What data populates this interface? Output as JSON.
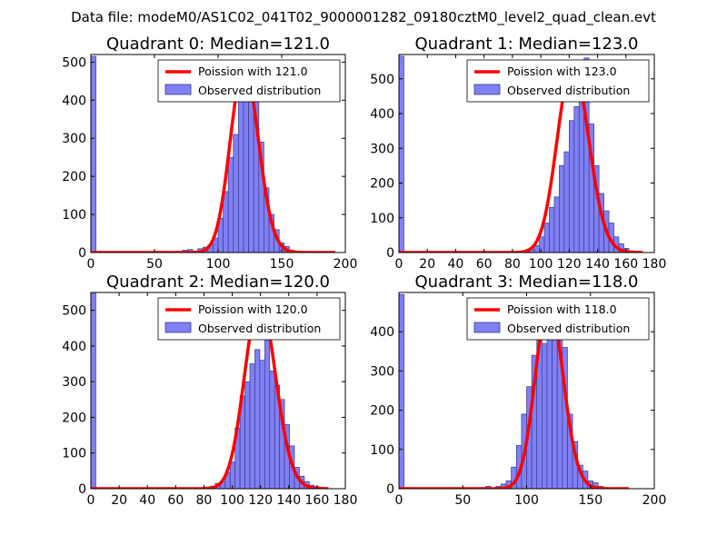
{
  "suptitle": "Data file: modeM0/AS1C02_041T02_9000001282_09180cztM0_level2_quad_clean.evt",
  "colors": {
    "bar_fill": "#8080f5",
    "bar_edge": "#3a3a8c",
    "curve": "#ff0000",
    "axis": "#000000",
    "background": "#ffffff"
  },
  "chart_data": [
    {
      "type": "bar",
      "title": "Quadrant 0: Median=121.0",
      "legend": {
        "curve_label": "Poission with 121.0",
        "bar_label": "Observed distribution",
        "placement": "top-right"
      },
      "xlim": [
        0,
        200
      ],
      "ylim": [
        0,
        520
      ],
      "xticks": [
        0,
        50,
        100,
        150,
        200
      ],
      "yticks": [
        0,
        100,
        200,
        300,
        400,
        500
      ],
      "bin_width": 4,
      "bins": [
        [
          0,
          515
        ],
        [
          56,
          3
        ],
        [
          64,
          2
        ],
        [
          68,
          3
        ],
        [
          72,
          6
        ],
        [
          76,
          8
        ],
        [
          80,
          4
        ],
        [
          84,
          10
        ],
        [
          88,
          14
        ],
        [
          92,
          20
        ],
        [
          96,
          38
        ],
        [
          100,
          90
        ],
        [
          104,
          160
        ],
        [
          108,
          250
        ],
        [
          112,
          310
        ],
        [
          116,
          410
        ],
        [
          120,
          470
        ],
        [
          124,
          480
        ],
        [
          128,
          410
        ],
        [
          132,
          290
        ],
        [
          136,
          170
        ],
        [
          140,
          100
        ],
        [
          144,
          60
        ],
        [
          148,
          25
        ],
        [
          152,
          16
        ],
        [
          156,
          6
        ],
        [
          160,
          2
        ]
      ],
      "curve": {
        "mu": 121.0,
        "peak": 490,
        "x_range": [
          0,
          192
        ]
      }
    },
    {
      "type": "bar",
      "title": "Quadrant 1: Median=123.0",
      "legend": {
        "curve_label": "Poission with 123.0",
        "bar_label": "Observed distribution",
        "placement": "top-right"
      },
      "xlim": [
        0,
        180
      ],
      "ylim": [
        0,
        570
      ],
      "xticks": [
        0,
        20,
        40,
        60,
        80,
        100,
        120,
        140,
        160,
        180
      ],
      "yticks": [
        0,
        100,
        200,
        300,
        400,
        500
      ],
      "bin_width": 3.5,
      "bins": [
        [
          0,
          565
        ],
        [
          80,
          2
        ],
        [
          84,
          4
        ],
        [
          88,
          6
        ],
        [
          92,
          10
        ],
        [
          95.5,
          20
        ],
        [
          99,
          45
        ],
        [
          102.5,
          85
        ],
        [
          106,
          130
        ],
        [
          109.5,
          160
        ],
        [
          113,
          250
        ],
        [
          116.5,
          290
        ],
        [
          120,
          380
        ],
        [
          123.5,
          420
        ],
        [
          127,
          550
        ],
        [
          130.5,
          560
        ],
        [
          134,
          370
        ],
        [
          137.5,
          250
        ],
        [
          141,
          170
        ],
        [
          144.5,
          120
        ],
        [
          148,
          85
        ],
        [
          151.5,
          45
        ],
        [
          155,
          25
        ],
        [
          158.5,
          12
        ],
        [
          162,
          5
        ]
      ],
      "curve": {
        "mu": 123.0,
        "peak": 540,
        "x_range": [
          0,
          172
        ]
      }
    },
    {
      "type": "bar",
      "title": "Quadrant 2: Median=120.0",
      "legend": {
        "curve_label": "Poission with 120.0",
        "bar_label": "Observed distribution",
        "placement": "top-right"
      },
      "xlim": [
        0,
        180
      ],
      "ylim": [
        0,
        550
      ],
      "xticks": [
        0,
        20,
        40,
        60,
        80,
        100,
        120,
        140,
        160,
        180
      ],
      "yticks": [
        0,
        100,
        200,
        300,
        400,
        500
      ],
      "bin_width": 3.5,
      "bins": [
        [
          0,
          550
        ],
        [
          74,
          3
        ],
        [
          81,
          5
        ],
        [
          84.5,
          7
        ],
        [
          88,
          15
        ],
        [
          91.5,
          20
        ],
        [
          95,
          45
        ],
        [
          98.5,
          75
        ],
        [
          102,
          170
        ],
        [
          105.5,
          260
        ],
        [
          109,
          300
        ],
        [
          112.5,
          350
        ],
        [
          116,
          390
        ],
        [
          119.5,
          360
        ],
        [
          123,
          480
        ],
        [
          126.5,
          330
        ],
        [
          130,
          290
        ],
        [
          133.5,
          250
        ],
        [
          137,
          180
        ],
        [
          140.5,
          120
        ],
        [
          144,
          60
        ],
        [
          147.5,
          35
        ],
        [
          151,
          20
        ],
        [
          154.5,
          10
        ],
        [
          158,
          6
        ],
        [
          161.5,
          3
        ]
      ],
      "curve": {
        "mu": 120.0,
        "peak": 525,
        "x_range": [
          0,
          168
        ]
      }
    },
    {
      "type": "bar",
      "title": "Quadrant 3: Median=118.0",
      "legend": {
        "curve_label": "Poission with 118.0",
        "bar_label": "Observed distribution",
        "placement": "top-right"
      },
      "xlim": [
        0,
        200
      ],
      "ylim": [
        0,
        500
      ],
      "xticks": [
        0,
        50,
        100,
        150,
        200
      ],
      "yticks": [
        0,
        100,
        200,
        300,
        400
      ],
      "bin_width": 4,
      "bins": [
        [
          0,
          495
        ],
        [
          64,
          3
        ],
        [
          68,
          6
        ],
        [
          76,
          6
        ],
        [
          80,
          12
        ],
        [
          84,
          20
        ],
        [
          88,
          55
        ],
        [
          92,
          110
        ],
        [
          96,
          190
        ],
        [
          100,
          260
        ],
        [
          104,
          340
        ],
        [
          108,
          380
        ],
        [
          112,
          370
        ],
        [
          116,
          390
        ],
        [
          120,
          430
        ],
        [
          124,
          450
        ],
        [
          128,
          360
        ],
        [
          132,
          190
        ],
        [
          136,
          120
        ],
        [
          140,
          60
        ],
        [
          144,
          45
        ],
        [
          148,
          20
        ],
        [
          152,
          15
        ],
        [
          156,
          6
        ],
        [
          160,
          2
        ]
      ],
      "curve": {
        "mu": 118.0,
        "peak": 475,
        "x_range": [
          0,
          180
        ]
      }
    }
  ]
}
